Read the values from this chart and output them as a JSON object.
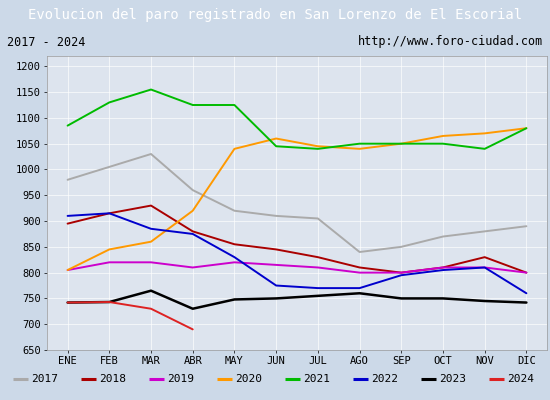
{
  "title": "Evolucion del paro registrado en San Lorenzo de El Escorial",
  "subtitle_left": "2017 - 2024",
  "subtitle_right": "http://www.foro-ciudad.com",
  "months": [
    "ENE",
    "FEB",
    "MAR",
    "ABR",
    "MAY",
    "JUN",
    "JUL",
    "AGO",
    "SEP",
    "OCT",
    "NOV",
    "DIC"
  ],
  "ylim": [
    650,
    1220
  ],
  "yticks": [
    650,
    700,
    750,
    800,
    850,
    900,
    950,
    1000,
    1050,
    1100,
    1150,
    1200
  ],
  "series": {
    "2017": {
      "color": "#aaaaaa",
      "linewidth": 1.4,
      "data": [
        980,
        1005,
        1030,
        960,
        920,
        910,
        905,
        840,
        850,
        870,
        880,
        890
      ]
    },
    "2018": {
      "color": "#aa0000",
      "linewidth": 1.4,
      "data": [
        895,
        915,
        930,
        880,
        855,
        845,
        830,
        810,
        800,
        810,
        830,
        800
      ]
    },
    "2019": {
      "color": "#cc00cc",
      "linewidth": 1.4,
      "data": [
        805,
        820,
        820,
        810,
        820,
        815,
        810,
        800,
        800,
        810,
        810,
        800
      ]
    },
    "2020": {
      "color": "#ff9900",
      "linewidth": 1.4,
      "data": [
        805,
        845,
        860,
        920,
        1040,
        1060,
        1045,
        1040,
        1050,
        1065,
        1070,
        1080
      ]
    },
    "2021": {
      "color": "#00bb00",
      "linewidth": 1.4,
      "data": [
        1085,
        1130,
        1155,
        1125,
        1125,
        1045,
        1040,
        1050,
        1050,
        1050,
        1040,
        1080
      ]
    },
    "2022": {
      "color": "#0000cc",
      "linewidth": 1.4,
      "data": [
        910,
        915,
        885,
        875,
        830,
        775,
        770,
        770,
        795,
        805,
        810,
        760
      ]
    },
    "2023": {
      "color": "#000000",
      "linewidth": 1.8,
      "data": [
        742,
        743,
        765,
        730,
        748,
        750,
        755,
        760,
        750,
        750,
        745,
        742
      ]
    },
    "2024": {
      "color": "#dd2222",
      "linewidth": 1.4,
      "data": [
        742,
        743,
        730,
        690,
        null,
        null,
        null,
        null,
        null,
        null,
        null,
        null
      ]
    }
  },
  "background_color": "#ccd9e8",
  "plot_bg_color": "#dde4ee",
  "title_bg_color": "#4472c4",
  "title_color": "#ffffff",
  "title_fontsize": 10,
  "subtitle_fontsize": 8.5,
  "axis_fontsize": 7.5,
  "legend_fontsize": 8
}
